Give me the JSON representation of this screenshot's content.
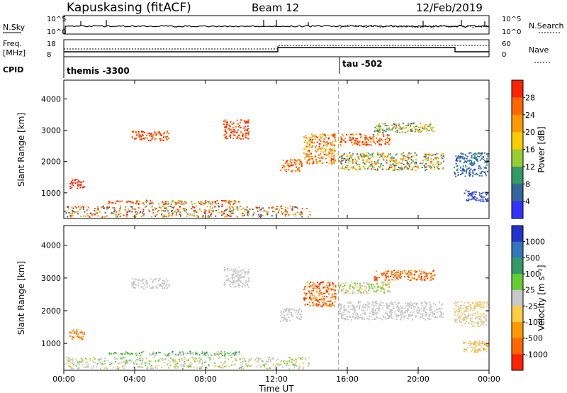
{
  "header": {
    "station": "Kapuskasing (fitACF)",
    "beam": "Beam 12",
    "date": "12/Feb/2019"
  },
  "aux_panels": {
    "nsky_label": "N.Sky",
    "nsky_ticks": [
      "10^5",
      "10^0"
    ],
    "nsearch_label": "N.Search",
    "nsearch_ticks": [
      "10^5",
      "10^0"
    ],
    "freq_label": "Freq.",
    "freq_unit": "[MHz]",
    "freq_ticks": [
      "18",
      "8"
    ],
    "nave_label": "Nave",
    "nave_ticks": [
      "60",
      "0"
    ],
    "cpid_label": "CPID",
    "cpid_entries": [
      {
        "text": "themis -3300",
        "start_hour": 0.0
      },
      {
        "text": "tau -502",
        "start_hour": 15.5
      }
    ],
    "colors": {
      "line": "#000000"
    }
  },
  "chart_data": [
    {
      "type": "heatmap",
      "panel": "power",
      "xlabel": "Time UT",
      "ylabel": "Slant Range [km]",
      "xlim": [
        0,
        24
      ],
      "ylim": [
        180,
        4600
      ],
      "xticks": [
        "00:00",
        "04:00",
        "08:00",
        "12:00",
        "16:00",
        "20:00",
        "00:00"
      ],
      "yticks": [
        1000,
        2000,
        3000,
        4000
      ],
      "colorbar": {
        "label": "Power [dB]",
        "ticks": [
          "28",
          "24",
          "20",
          "16",
          "12",
          "8",
          "4"
        ],
        "colors": [
          "#ff2200",
          "#ff6600",
          "#ff9900",
          "#ffcc00",
          "#99cc33",
          "#339966",
          "#336699",
          "#3333ff"
        ]
      },
      "regions": [
        {
          "t": [
            0,
            14
          ],
          "r": [
            200,
            600
          ],
          "levels": [
            0,
            1,
            2,
            4,
            6
          ]
        },
        {
          "t": [
            4,
            10
          ],
          "r": [
            600,
            780
          ],
          "levels": [
            0,
            1,
            4
          ]
        },
        {
          "t": [
            2.5,
            4
          ],
          "r": [
            640,
            760
          ],
          "levels": [
            0,
            1
          ]
        },
        {
          "t": [
            0.3,
            1.2
          ],
          "r": [
            1100,
            1450
          ],
          "levels": [
            0
          ]
        },
        {
          "t": [
            3.8,
            6
          ],
          "r": [
            2650,
            3000
          ],
          "levels": [
            0,
            1
          ]
        },
        {
          "t": [
            9,
            10.5
          ],
          "r": [
            2700,
            3350
          ],
          "levels": [
            0,
            1
          ]
        },
        {
          "t": [
            12.2,
            13.5
          ],
          "r": [
            1650,
            2100
          ],
          "levels": [
            0,
            1,
            2
          ]
        },
        {
          "t": [
            13.5,
            15.4
          ],
          "r": [
            1900,
            2900
          ],
          "levels": [
            0,
            1,
            2,
            3
          ]
        },
        {
          "t": [
            15.5,
            21.5
          ],
          "r": [
            1700,
            2300
          ],
          "levels": [
            1,
            2,
            3,
            4,
            5,
            6
          ]
        },
        {
          "t": [
            17.5,
            21
          ],
          "r": [
            2900,
            3250
          ],
          "levels": [
            2,
            3,
            4,
            5,
            6
          ]
        },
        {
          "t": [
            15.5,
            18.5
          ],
          "r": [
            2500,
            2900
          ],
          "levels": [
            0,
            1,
            2
          ]
        },
        {
          "t": [
            22,
            24
          ],
          "r": [
            1500,
            2300
          ],
          "levels": [
            5,
            6,
            7
          ]
        },
        {
          "t": [
            22.5,
            24
          ],
          "r": [
            700,
            1100
          ],
          "levels": [
            6,
            7
          ]
        }
      ],
      "time_marker_hour": 15.5
    },
    {
      "type": "heatmap",
      "panel": "velocity",
      "xlabel": "Time UT",
      "ylabel": "Slant Range [km]",
      "xlim": [
        0,
        24
      ],
      "ylim": [
        180,
        4600
      ],
      "xticks": [
        "00:00",
        "04:00",
        "08:00",
        "12:00",
        "16:00",
        "20:00",
        "00:00"
      ],
      "yticks": [
        1000,
        2000,
        3000,
        4000
      ],
      "colorbar": {
        "label": "Velocity [m s⁻¹]",
        "ticks": [
          "1000",
          "500",
          "100",
          "25",
          "-25",
          "-100",
          "-500",
          "-1000"
        ],
        "colors": [
          "#2233cc",
          "#3377bb",
          "#339966",
          "#66cc33",
          "#c8c8c8",
          "#ffcc44",
          "#ff9900",
          "#ff6600",
          "#ff2200"
        ]
      },
      "regions": [
        {
          "t": [
            0,
            14
          ],
          "r": [
            200,
            600
          ],
          "levels": [
            3,
            4,
            4,
            5
          ]
        },
        {
          "t": [
            4,
            10
          ],
          "r": [
            600,
            780
          ],
          "levels": [
            3,
            4,
            2
          ]
        },
        {
          "t": [
            2.5,
            4
          ],
          "r": [
            640,
            760
          ],
          "levels": [
            3,
            2
          ]
        },
        {
          "t": [
            0.3,
            1.2
          ],
          "r": [
            1100,
            1450
          ],
          "levels": [
            6,
            7
          ]
        },
        {
          "t": [
            3.8,
            6
          ],
          "r": [
            2650,
            3000
          ],
          "levels": [
            4
          ]
        },
        {
          "t": [
            9,
            10.5
          ],
          "r": [
            2700,
            3350
          ],
          "levels": [
            4
          ]
        },
        {
          "t": [
            12.2,
            13.5
          ],
          "r": [
            1650,
            2100
          ],
          "levels": [
            4
          ]
        },
        {
          "t": [
            13.5,
            15.4
          ],
          "r": [
            2100,
            2900
          ],
          "levels": [
            6,
            7,
            8
          ]
        },
        {
          "t": [
            15.5,
            21.5
          ],
          "r": [
            1700,
            2300
          ],
          "levels": [
            4
          ]
        },
        {
          "t": [
            17.5,
            21
          ],
          "r": [
            2900,
            3250
          ],
          "levels": [
            6,
            7,
            8
          ]
        },
        {
          "t": [
            15.5,
            18.5
          ],
          "r": [
            2500,
            2900
          ],
          "levels": [
            3,
            4,
            5
          ]
        },
        {
          "t": [
            22,
            24
          ],
          "r": [
            1500,
            2300
          ],
          "levels": [
            4,
            5
          ]
        },
        {
          "t": [
            22.5,
            24
          ],
          "r": [
            700,
            1100
          ],
          "levels": [
            4,
            5,
            6
          ]
        }
      ],
      "time_marker_hour": 15.5
    }
  ]
}
